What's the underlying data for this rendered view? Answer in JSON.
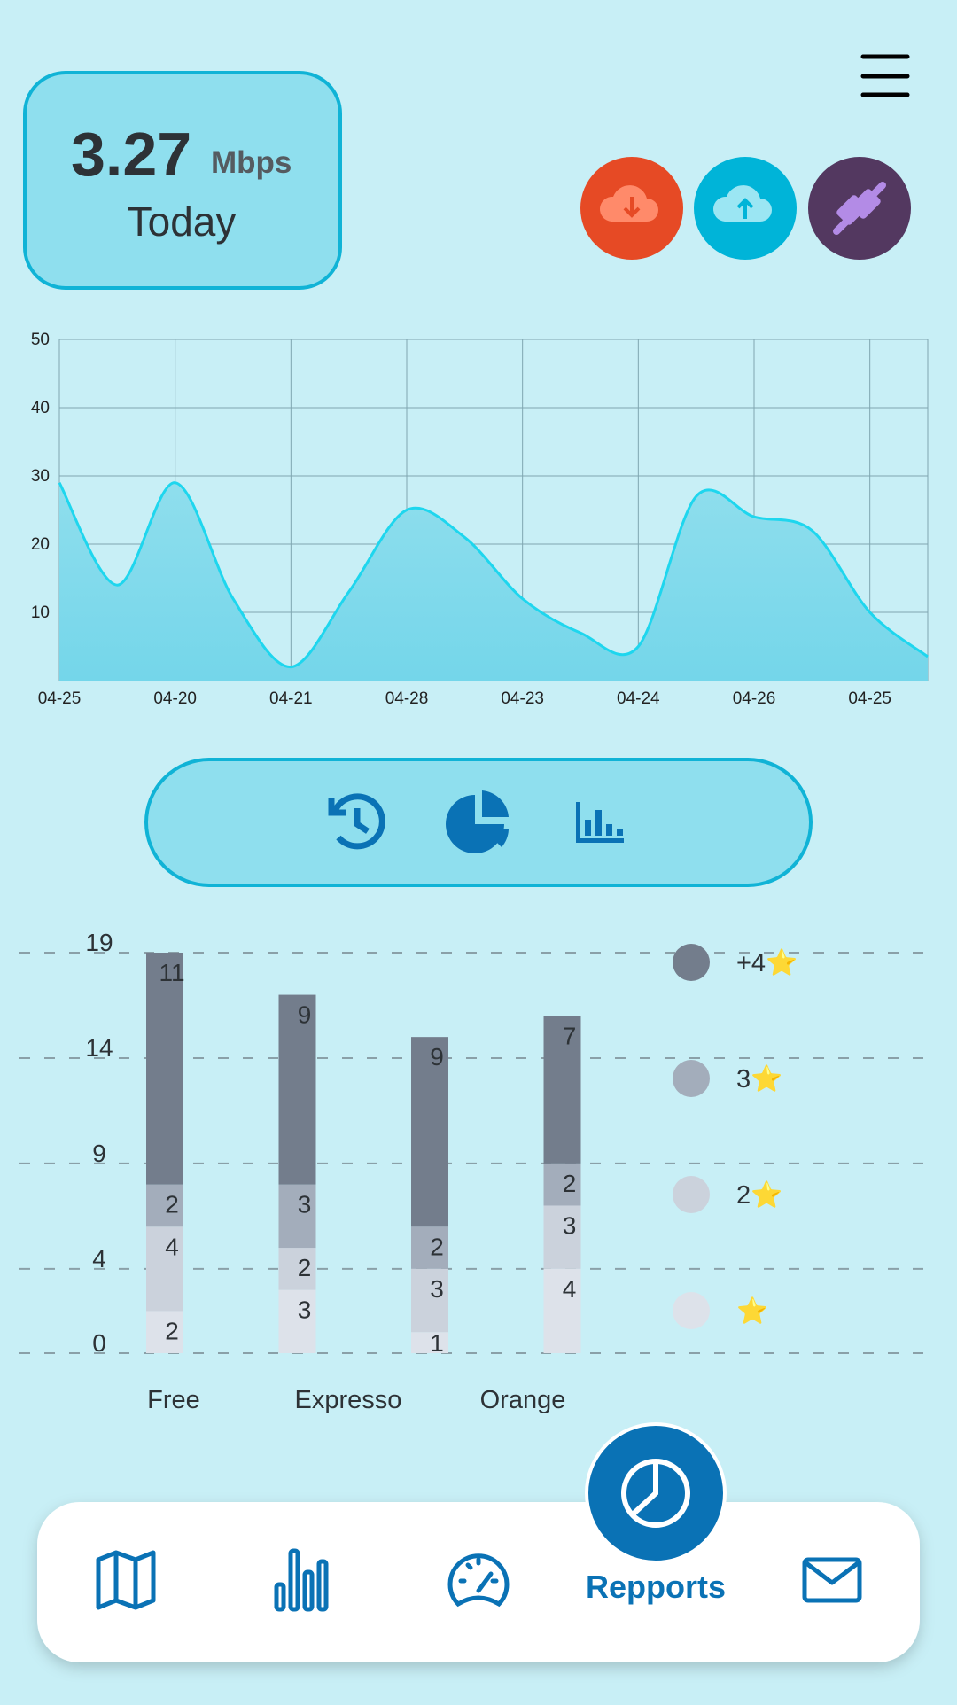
{
  "header": {
    "speed": 3.27,
    "unit": "Mbps",
    "period": "Today"
  },
  "chart_data": [
    {
      "type": "area",
      "categories": [
        "04-25",
        null,
        "04-20",
        null,
        "04-21",
        null,
        "04-28",
        null,
        "04-23",
        null,
        "04-24",
        null,
        "04-26",
        null,
        "04-25",
        null
      ],
      "values": [
        29,
        14,
        29,
        12,
        2,
        13,
        25,
        21,
        12,
        7,
        5,
        27,
        24,
        22,
        10,
        3.5
      ],
      "color": "#1ed6ee",
      "ylim": [
        0,
        50
      ],
      "yticks": [
        10,
        20,
        30,
        40,
        50
      ],
      "grid": true
    },
    {
      "type": "stacked_bar",
      "categories": [
        "Free",
        "Expresso",
        "Orange",
        null
      ],
      "series": [
        {
          "name": "+4⭐",
          "color": "#737d8c",
          "values": [
            11,
            9,
            9,
            7
          ]
        },
        {
          "name": "3⭐",
          "color": "#a3adbb",
          "values": [
            2,
            3,
            2,
            2
          ]
        },
        {
          "name": "2⭐",
          "color": "#cbd2dc",
          "values": [
            4,
            2,
            3,
            3
          ]
        },
        {
          "name": "⭐",
          "color": "#dde2ea",
          "values": [
            2,
            3,
            1,
            4
          ]
        }
      ],
      "ylim": [
        0,
        19
      ],
      "yticks": [
        0,
        4,
        9,
        14,
        19
      ],
      "grid": true,
      "legend": "right"
    }
  ],
  "nav": {
    "active_label": "Repports"
  }
}
